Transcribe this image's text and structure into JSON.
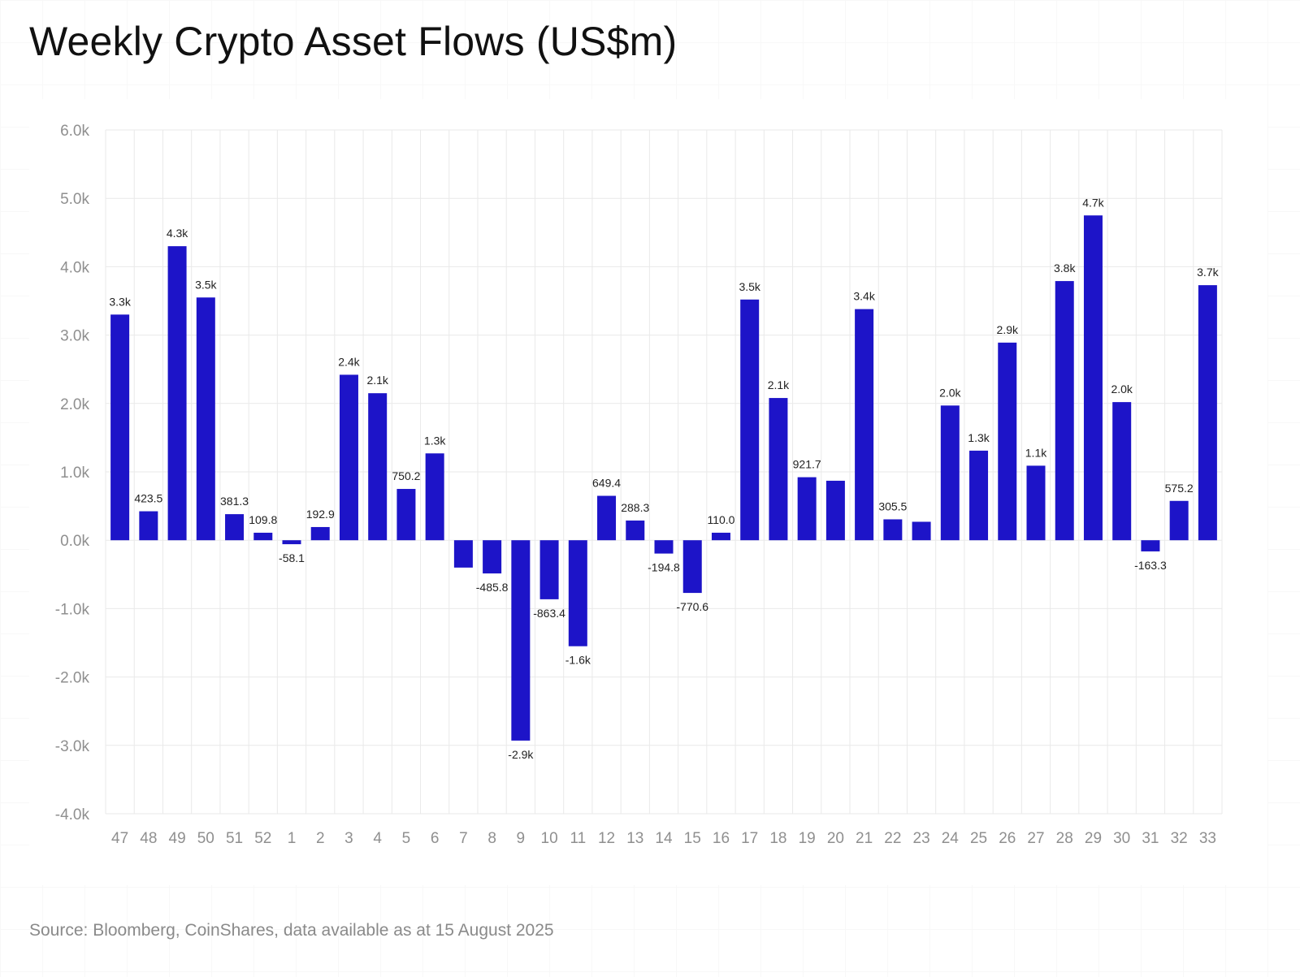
{
  "title": "Weekly Crypto Asset Flows (US$m)",
  "source": "Source: Bloomberg, CoinShares, data available as at 15 August 2025",
  "colors": {
    "bar": "#1d14c8",
    "grid": "#e9e9e9",
    "tick": "#8f8f8f",
    "label": "#222222"
  },
  "chart_data": {
    "type": "bar",
    "title": "Weekly Crypto Asset Flows (US$m)",
    "xlabel": "",
    "ylabel": "",
    "ylim": [
      -4000,
      6000
    ],
    "yticks": [
      6000,
      5000,
      4000,
      3000,
      2000,
      1000,
      0,
      -1000,
      -2000,
      -3000,
      -4000
    ],
    "ytick_labels": [
      "6.0k",
      "5.0k",
      "4.0k",
      "3.0k",
      "2.0k",
      "1.0k",
      "0.0k",
      "-1.0k",
      "-2.0k",
      "-3.0k",
      "-4.0k"
    ],
    "grid": true,
    "legend": "none",
    "categories": [
      "47",
      "48",
      "49",
      "50",
      "51",
      "52",
      "1",
      "2",
      "3",
      "4",
      "5",
      "6",
      "7",
      "8",
      "9",
      "10",
      "11",
      "12",
      "13",
      "14",
      "15",
      "16",
      "17",
      "18",
      "19",
      "20",
      "21",
      "22",
      "23",
      "24",
      "25",
      "26",
      "27",
      "28",
      "29",
      "30",
      "31",
      "32",
      "33"
    ],
    "values": [
      3300,
      423.5,
      4300,
      3550,
      381.3,
      109.8,
      -58.1,
      192.9,
      2420,
      2150,
      750.2,
      1270,
      -400,
      -485.8,
      -2930,
      -863.4,
      -1550,
      649.4,
      288.3,
      -194.8,
      -770.6,
      110.0,
      3520,
      2080,
      921.7,
      870,
      3380,
      305.5,
      270,
      1970,
      1310,
      2890,
      1090,
      3790,
      4750,
      2020,
      -163.3,
      575.2,
      3730
    ],
    "data_labels": [
      "3.3k",
      "423.5",
      "4.3k",
      "3.5k",
      "381.3",
      "109.8",
      "-58.1",
      "192.9",
      "2.4k",
      "2.1k",
      "750.2",
      "1.3k",
      "",
      "-485.8",
      "-2.9k",
      "-863.4",
      "-1.6k",
      "649.4",
      "288.3",
      "-194.8",
      "-770.6",
      "110.0",
      "3.5k",
      "2.1k",
      "921.7",
      "",
      "3.4k",
      "305.5",
      "",
      "2.0k",
      "1.3k",
      "2.9k",
      "1.1k",
      "3.8k",
      "4.7k",
      "2.0k",
      "-163.3",
      "575.2",
      "3.7k"
    ]
  }
}
